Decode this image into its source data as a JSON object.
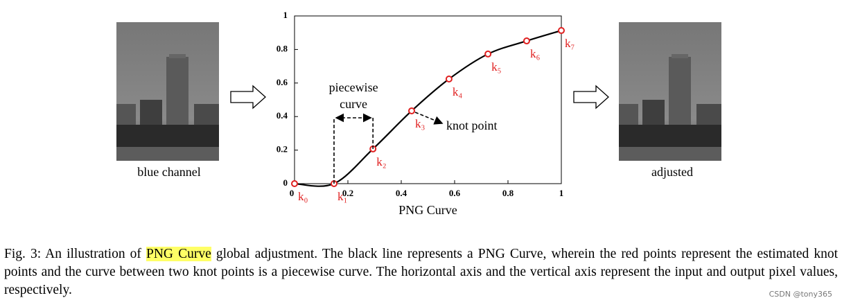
{
  "chart_data": {
    "type": "line",
    "xlabel": "PNG Curve",
    "x": [
      0,
      0.148,
      0.294,
      0.439,
      0.579,
      0.725,
      0.87,
      1.0
    ],
    "values": [
      0,
      0,
      0.207,
      0.434,
      0.624,
      0.773,
      0.851,
      0.913
    ],
    "point_labels": [
      "k₀",
      "k₁",
      "k₂",
      "k₃",
      "k₄",
      "k₅",
      "k₆",
      "k₇"
    ],
    "color": "#000000",
    "point_color": "#e02020",
    "xlim": [
      0,
      1
    ],
    "ylim": [
      0,
      1
    ],
    "xticks": [
      0,
      0.2,
      0.4,
      0.6,
      0.8,
      1
    ],
    "yticks": [
      0,
      0.2,
      0.4,
      0.6,
      0.8,
      1
    ],
    "annotations": [
      "piecewise",
      "curve",
      "knot point"
    ]
  },
  "figure": {
    "left_label": "blue channel",
    "right_label": "adjusted",
    "caption": {
      "prefix": "Fig. 3: An illustration of",
      "highlight": "PNG Curve",
      "text": "global adjustment. The black line represents a PNG Curve, wherein the red points represent the estimated knot points and the curve between two knot points is a piecewise curve. The horizontal axis and the vertical axis represent the input and output pixel values, respectively."
    },
    "watermark": "CSDN @tony365"
  }
}
